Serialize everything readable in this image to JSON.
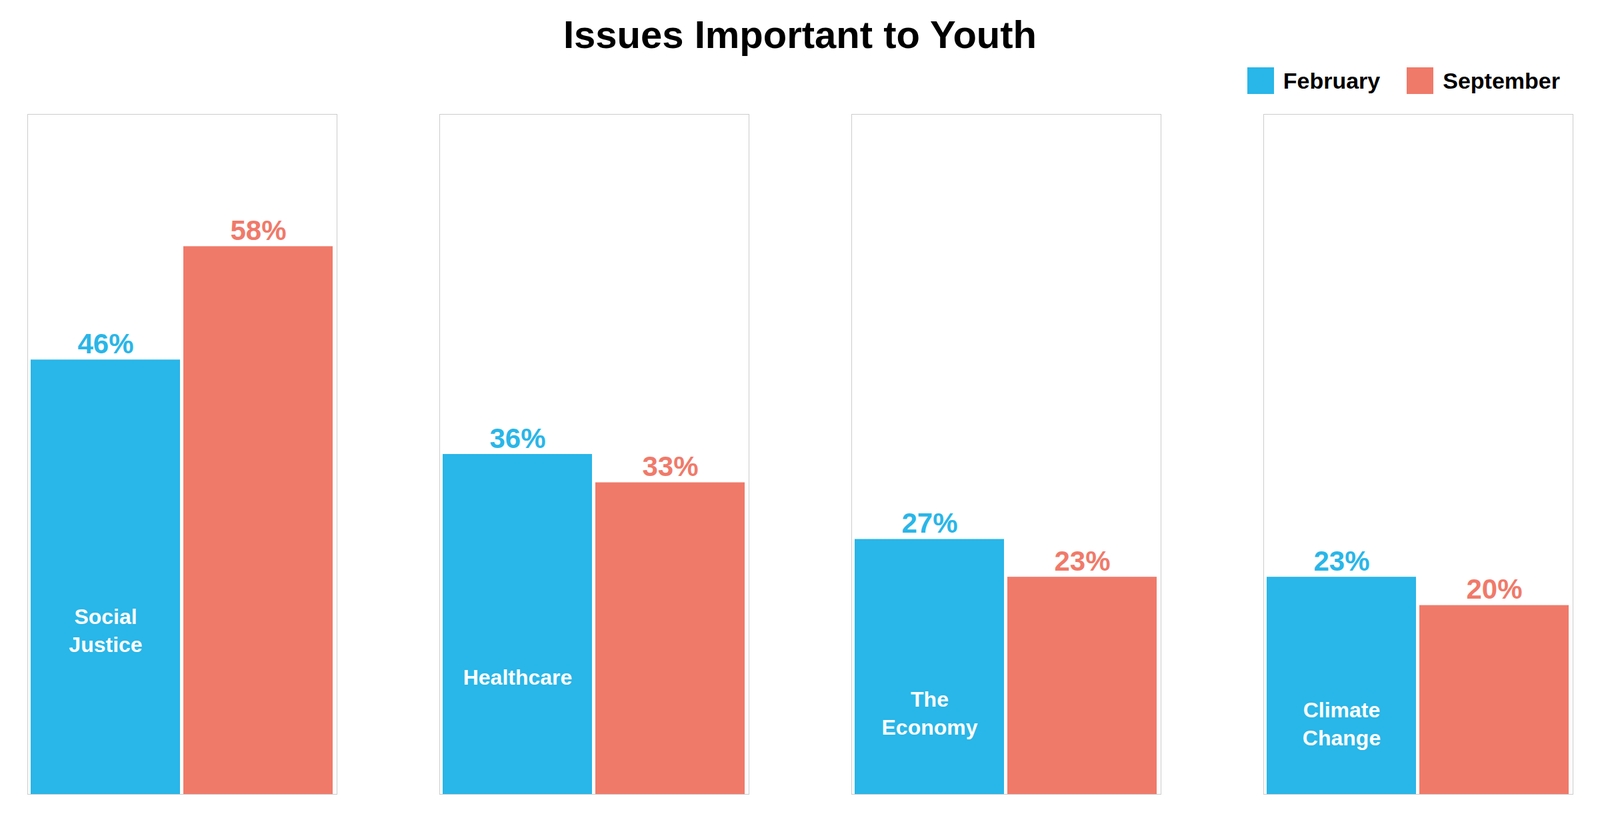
{
  "chart_data": {
    "type": "bar",
    "title": "Issues Important to Youth",
    "categories": [
      "Social\nJustice",
      "Healthcare",
      "The\nEconomy",
      "Climate\nChange"
    ],
    "series": [
      {
        "name": "February",
        "color": "#29B6E8",
        "values": [
          46,
          36,
          27,
          23
        ],
        "value_labels": [
          "46%",
          "36%",
          "27%",
          "23%"
        ]
      },
      {
        "name": "September",
        "color": "#F07A6A",
        "values": [
          58,
          33,
          23,
          20
        ],
        "value_labels": [
          "58%",
          "33%",
          "23%",
          "20%"
        ]
      }
    ],
    "ylim": [
      0,
      72
    ],
    "data_labels": true,
    "tick_labels": false,
    "grid": false,
    "legend": "upper right"
  }
}
